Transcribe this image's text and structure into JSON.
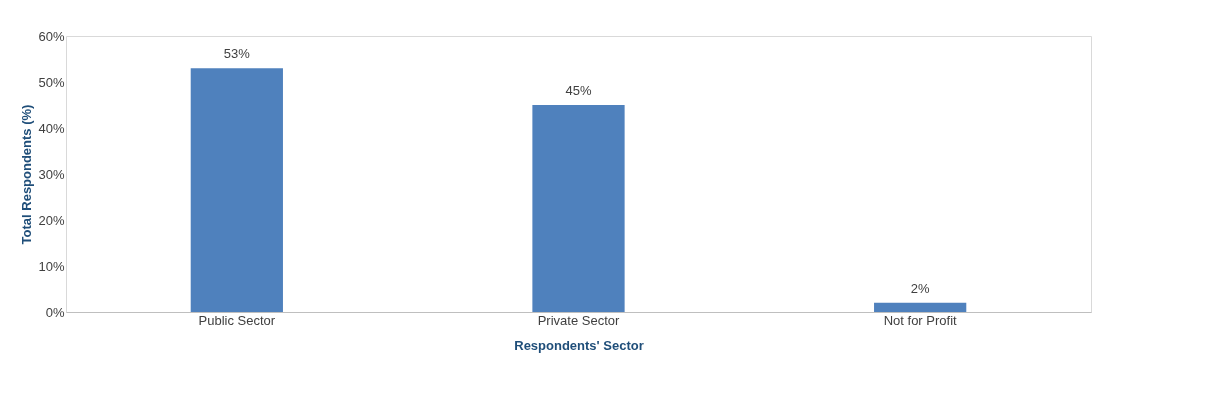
{
  "chart_data": {
    "type": "bar",
    "xlabel": "Respondents' Sector",
    "ylabel": "Total Respondents (%)",
    "categories": [
      "Public Sector",
      "Private Sector",
      "Not for Profit"
    ],
    "values": [
      53,
      45,
      2
    ],
    "color": "#4f81bd",
    "value_labels": [
      "53%",
      "45%",
      "2%"
    ],
    "ylim": [
      0,
      60
    ],
    "yticks": [
      {
        "value": 0,
        "label": "0%"
      },
      {
        "value": 10,
        "label": "10%"
      },
      {
        "value": 20,
        "label": "20%"
      },
      {
        "value": 30,
        "label": "30%"
      },
      {
        "value": 40,
        "label": "40%"
      },
      {
        "value": 50,
        "label": "50%"
      },
      {
        "value": 60,
        "label": "60%"
      }
    ],
    "grid": false
  }
}
